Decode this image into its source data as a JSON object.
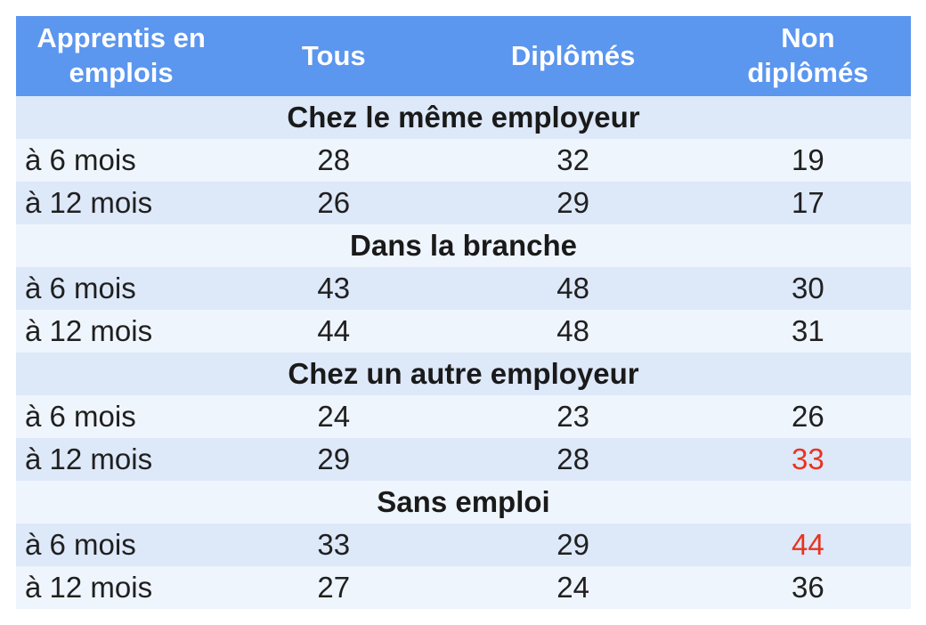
{
  "colors": {
    "header_bg": "#5b96ef",
    "header_text": "#ffffff",
    "row_stripe_dark": "#dde8f9",
    "row_stripe_light": "#eff5fd",
    "body_text": "#202020",
    "highlight_red": "#e8341f",
    "page_bg": "#ffffff"
  },
  "chart_data": {
    "type": "table",
    "title": "Apprentis en emplois",
    "columns": [
      "Apprentis en emplois",
      "Tous",
      "Diplômés",
      "Non diplômés"
    ],
    "sections": [
      {
        "title": "Chez le même employeur",
        "rows": [
          {
            "label": "à 6 mois",
            "values": [
              28,
              32,
              19
            ]
          },
          {
            "label": "à 12 mois",
            "values": [
              26,
              29,
              17
            ]
          }
        ]
      },
      {
        "title": "Dans la branche",
        "rows": [
          {
            "label": "à 6 mois",
            "values": [
              43,
              48,
              30
            ]
          },
          {
            "label": "à 12 mois",
            "values": [
              44,
              48,
              31
            ]
          }
        ]
      },
      {
        "title": "Chez un autre employeur",
        "rows": [
          {
            "label": "à 6 mois",
            "values": [
              24,
              23,
              26
            ]
          },
          {
            "label": "à 12 mois",
            "values": [
              29,
              28,
              33
            ]
          }
        ]
      },
      {
        "title": "Sans emploi",
        "rows": [
          {
            "label": "à 6 mois",
            "values": [
              33,
              29,
              44
            ]
          },
          {
            "label": "à 12 mois",
            "values": [
              27,
              24,
              36
            ]
          }
        ]
      }
    ],
    "red_cells": [
      "2-1-2",
      "3-0-2"
    ],
    "red_cells_meaning": [
      {
        "section": "Chez un autre employeur",
        "row": "à 12 mois",
        "column": "Non diplômés",
        "value": 33
      },
      {
        "section": "Sans emploi",
        "row": "à 6 mois",
        "column": "Non diplômés",
        "value": 44
      }
    ],
    "layout": {
      "grid": false,
      "striped_rows": true,
      "section_headers_span_all_columns": true
    }
  }
}
